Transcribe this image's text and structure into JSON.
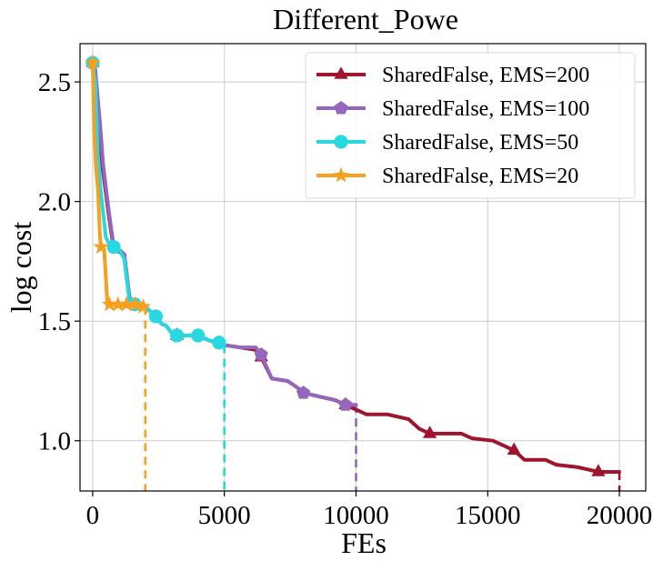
{
  "chart_data": {
    "type": "line",
    "title": "Different_Powe",
    "xlabel": "FEs",
    "ylabel": "log cost",
    "xlim": [
      -480,
      21000
    ],
    "ylim": [
      0.79,
      2.66
    ],
    "xticks": [
      0,
      5000,
      10000,
      15000,
      20000
    ],
    "xtick_labels": [
      "0",
      "5000",
      "10000",
      "15000",
      "20000"
    ],
    "yticks": [
      1.0,
      1.5,
      2.0,
      2.5
    ],
    "ytick_labels": [
      "1.0",
      "1.5",
      "2.0",
      "2.5"
    ],
    "grid": true,
    "legend_position": "top-right",
    "series": [
      {
        "name": "SharedFalse, EMS=200",
        "color": "#a0152e",
        "marker": "triangle",
        "end_fe": 20000,
        "points": [
          [
            0,
            2.58
          ],
          [
            150,
            2.45
          ],
          [
            300,
            2.2
          ],
          [
            400,
            2.12
          ],
          [
            600,
            1.95
          ],
          [
            800,
            1.8
          ],
          [
            1000,
            1.79
          ],
          [
            1200,
            1.78
          ],
          [
            1400,
            1.6
          ],
          [
            1600,
            1.57
          ],
          [
            2000,
            1.56
          ],
          [
            2400,
            1.52
          ],
          [
            2600,
            1.49
          ],
          [
            2800,
            1.48
          ],
          [
            3000,
            1.45
          ],
          [
            3200,
            1.44
          ],
          [
            4000,
            1.44
          ],
          [
            4400,
            1.42
          ],
          [
            5000,
            1.4
          ],
          [
            5600,
            1.39
          ],
          [
            6200,
            1.38
          ],
          [
            6400,
            1.35
          ],
          [
            6800,
            1.26
          ],
          [
            7400,
            1.25
          ],
          [
            7800,
            1.22
          ],
          [
            8000,
            1.2
          ],
          [
            8800,
            1.18
          ],
          [
            9200,
            1.17
          ],
          [
            9600,
            1.15
          ],
          [
            10000,
            1.13
          ],
          [
            10400,
            1.11
          ],
          [
            11200,
            1.11
          ],
          [
            12000,
            1.09
          ],
          [
            12400,
            1.05
          ],
          [
            12800,
            1.03
          ],
          [
            13200,
            1.03
          ],
          [
            14000,
            1.03
          ],
          [
            14400,
            1.01
          ],
          [
            15200,
            1.0
          ],
          [
            16000,
            0.96
          ],
          [
            16400,
            0.92
          ],
          [
            17200,
            0.92
          ],
          [
            17600,
            0.9
          ],
          [
            18400,
            0.89
          ],
          [
            18800,
            0.88
          ],
          [
            19200,
            0.87
          ],
          [
            20000,
            0.87
          ]
        ],
        "markers": [
          [
            0,
            2.58
          ],
          [
            3200,
            1.44
          ],
          [
            6400,
            1.35
          ],
          [
            9600,
            1.15
          ],
          [
            12800,
            1.03
          ],
          [
            16000,
            0.96
          ],
          [
            19200,
            0.87
          ]
        ]
      },
      {
        "name": "SharedFalse, EMS=100",
        "color": "#9467bd",
        "marker": "pentagon",
        "end_fe": 10000,
        "points": [
          [
            0,
            2.58
          ],
          [
            100,
            2.55
          ],
          [
            300,
            2.3
          ],
          [
            400,
            2.15
          ],
          [
            600,
            1.97
          ],
          [
            800,
            1.81
          ],
          [
            1000,
            1.8
          ],
          [
            1200,
            1.78
          ],
          [
            1400,
            1.6
          ],
          [
            1600,
            1.57
          ],
          [
            2000,
            1.56
          ],
          [
            2400,
            1.52
          ],
          [
            2600,
            1.49
          ],
          [
            2800,
            1.48
          ],
          [
            3000,
            1.45
          ],
          [
            3200,
            1.44
          ],
          [
            4000,
            1.44
          ],
          [
            4400,
            1.42
          ],
          [
            5000,
            1.4
          ],
          [
            5600,
            1.39
          ],
          [
            6200,
            1.39
          ],
          [
            6400,
            1.36
          ],
          [
            6800,
            1.26
          ],
          [
            7400,
            1.25
          ],
          [
            7800,
            1.22
          ],
          [
            8000,
            1.2
          ],
          [
            8800,
            1.18
          ],
          [
            9200,
            1.17
          ],
          [
            9600,
            1.15
          ],
          [
            10000,
            1.15
          ]
        ],
        "markers": [
          [
            0,
            2.58
          ],
          [
            1600,
            1.57
          ],
          [
            3200,
            1.44
          ],
          [
            4800,
            1.41
          ],
          [
            6400,
            1.36
          ],
          [
            8000,
            1.2
          ],
          [
            9600,
            1.15
          ]
        ]
      },
      {
        "name": "SharedFalse, EMS=50",
        "color": "#28d7e0",
        "marker": "circle",
        "end_fe": 5000,
        "points": [
          [
            0,
            2.58
          ],
          [
            100,
            2.5
          ],
          [
            200,
            2.2
          ],
          [
            300,
            2.05
          ],
          [
            500,
            1.85
          ],
          [
            700,
            1.81
          ],
          [
            1000,
            1.8
          ],
          [
            1200,
            1.76
          ],
          [
            1400,
            1.58
          ],
          [
            1600,
            1.57
          ],
          [
            2000,
            1.56
          ],
          [
            2400,
            1.52
          ],
          [
            2600,
            1.49
          ],
          [
            2800,
            1.48
          ],
          [
            3000,
            1.45
          ],
          [
            3200,
            1.44
          ],
          [
            4000,
            1.44
          ],
          [
            4400,
            1.42
          ],
          [
            5000,
            1.4
          ]
        ],
        "markers": [
          [
            0,
            2.58
          ],
          [
            800,
            1.81
          ],
          [
            1600,
            1.57
          ],
          [
            2400,
            1.52
          ],
          [
            3200,
            1.44
          ],
          [
            4000,
            1.44
          ],
          [
            4800,
            1.41
          ]
        ]
      },
      {
        "name": "SharedFalse, EMS=20",
        "color": "#f5a020",
        "marker": "star",
        "end_fe": 2000,
        "points": [
          [
            0,
            2.58
          ],
          [
            60,
            2.3
          ],
          [
            120,
            2.15
          ],
          [
            200,
            2.05
          ],
          [
            280,
            1.85
          ],
          [
            320,
            1.81
          ],
          [
            440,
            1.8
          ],
          [
            560,
            1.57
          ],
          [
            800,
            1.57
          ],
          [
            2000,
            1.56
          ]
        ],
        "markers": [
          [
            0,
            2.58
          ],
          [
            320,
            1.81
          ],
          [
            640,
            1.57
          ],
          [
            960,
            1.57
          ],
          [
            1280,
            1.57
          ],
          [
            1600,
            1.57
          ],
          [
            1920,
            1.56
          ]
        ]
      }
    ]
  }
}
